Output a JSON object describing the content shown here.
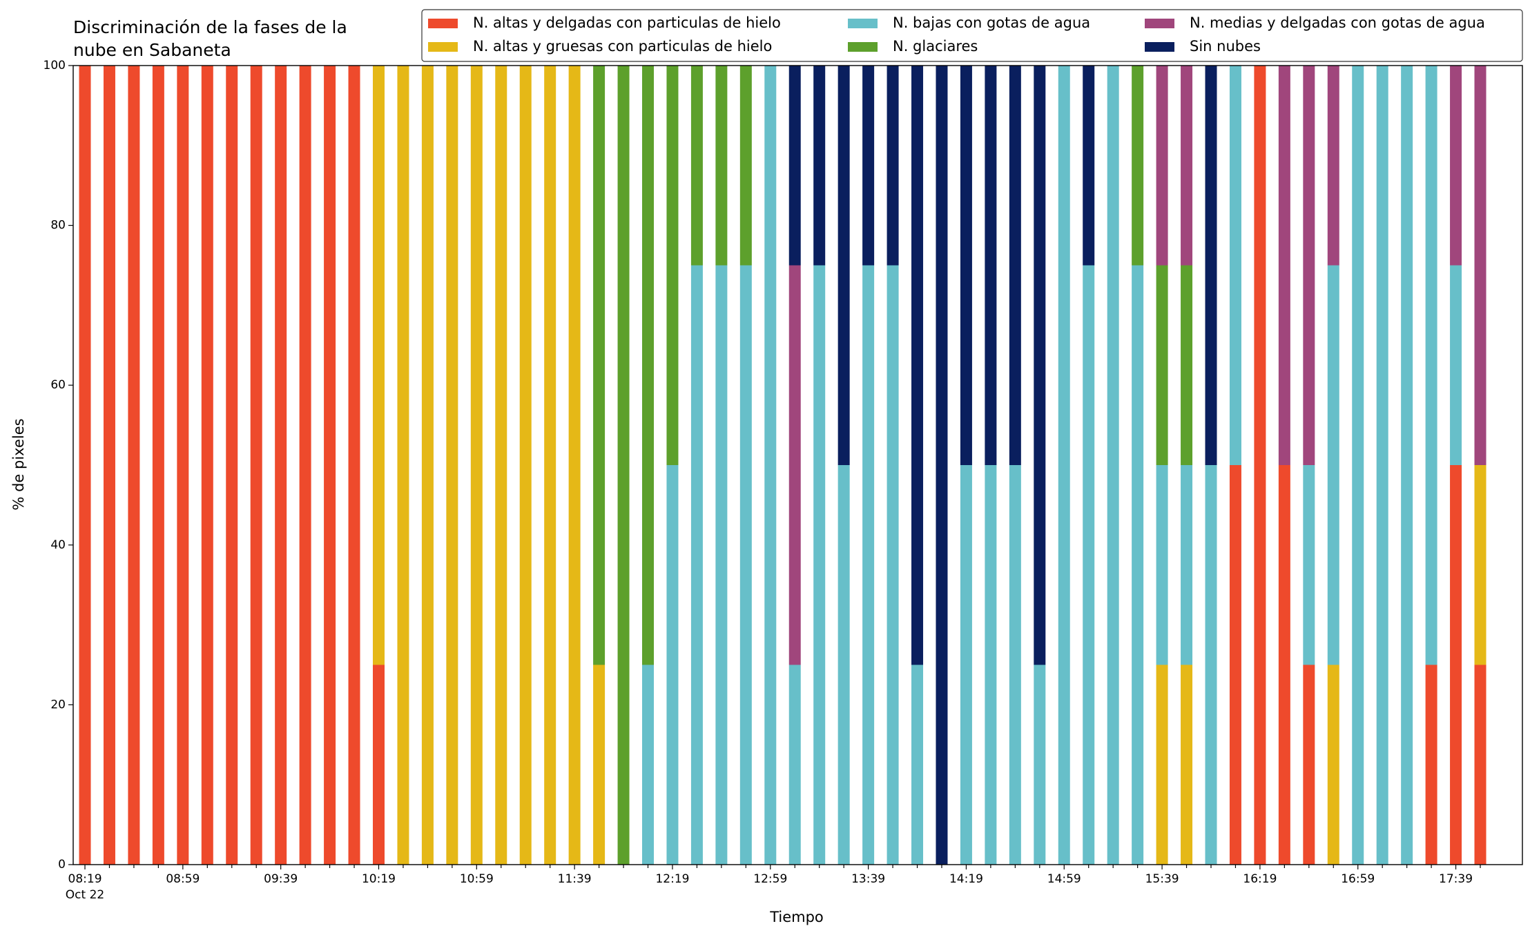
{
  "chart_data": {
    "type": "stacked_bar",
    "title": [
      "Discriminación de la fases de la",
      "nube en Sabaneta"
    ],
    "x_label": "Tiempo",
    "y_label": "% de pixeles",
    "x_date_label": "Oct 22",
    "categories": [
      "08:19",
      null,
      null,
      null,
      "08:59",
      null,
      null,
      null,
      "09:39",
      null,
      null,
      null,
      "10:19",
      null,
      null,
      null,
      "10:59",
      null,
      null,
      null,
      "11:39",
      null,
      null,
      null,
      "12:19",
      null,
      null,
      null,
      "12:59",
      null,
      null,
      null,
      "13:39",
      null,
      null,
      null,
      "14:19",
      null,
      null,
      null,
      "14:59",
      null,
      null,
      null,
      "15:39",
      null,
      null,
      null,
      "16:19",
      null,
      null,
      null,
      "16:59",
      null,
      null,
      null,
      "17:39",
      null
    ],
    "ylim": [
      0,
      100
    ],
    "yticks": [
      0,
      20,
      40,
      60,
      80,
      100
    ],
    "grid": false,
    "legend": "top-right",
    "series": [
      {
        "name": "N. altas y delgadas con particulas de hielo",
        "color": "#ee4a2c",
        "values": [
          100,
          100,
          100,
          100,
          100,
          100,
          100,
          100,
          100,
          100,
          100,
          100,
          25,
          0,
          0,
          0,
          0,
          0,
          0,
          0,
          0,
          0,
          0,
          0,
          0,
          0,
          0,
          0,
          0,
          0,
          0,
          0,
          0,
          0,
          0,
          0,
          0,
          0,
          0,
          0,
          0,
          0,
          0,
          0,
          0,
          0,
          0,
          50,
          100,
          50,
          25,
          0,
          0,
          0,
          0,
          25,
          50,
          25
        ]
      },
      {
        "name": "N. altas y gruesas con particulas de hielo",
        "color": "#e5b817",
        "values": [
          0,
          0,
          0,
          0,
          0,
          0,
          0,
          0,
          0,
          0,
          0,
          0,
          75,
          100,
          100,
          100,
          100,
          100,
          100,
          100,
          100,
          25,
          0,
          0,
          0,
          0,
          0,
          0,
          0,
          0,
          0,
          0,
          0,
          0,
          0,
          0,
          0,
          0,
          0,
          0,
          0,
          0,
          0,
          0,
          25,
          25,
          0,
          0,
          0,
          0,
          0,
          25,
          0,
          0,
          0,
          0,
          0,
          25
        ]
      },
      {
        "name": "N. bajas con gotas de agua",
        "color": "#67bfc9",
        "values": [
          0,
          0,
          0,
          0,
          0,
          0,
          0,
          0,
          0,
          0,
          0,
          0,
          0,
          0,
          0,
          0,
          0,
          0,
          0,
          0,
          0,
          0,
          0,
          25,
          50,
          75,
          75,
          75,
          100,
          25,
          75,
          50,
          75,
          75,
          25,
          0,
          50,
          50,
          50,
          25,
          100,
          75,
          100,
          75,
          25,
          25,
          50,
          50,
          0,
          0,
          25,
          50,
          100,
          100,
          100,
          75,
          25,
          0
        ]
      },
      {
        "name": "N. glaciares",
        "color": "#5da02c",
        "values": [
          0,
          0,
          0,
          0,
          0,
          0,
          0,
          0,
          0,
          0,
          0,
          0,
          0,
          0,
          0,
          0,
          0,
          0,
          0,
          0,
          0,
          75,
          100,
          75,
          50,
          25,
          25,
          25,
          0,
          0,
          0,
          0,
          0,
          0,
          0,
          0,
          0,
          0,
          0,
          0,
          0,
          0,
          0,
          25,
          25,
          25,
          0,
          0,
          0,
          0,
          0,
          0,
          0,
          0,
          0,
          0,
          0,
          0
        ]
      },
      {
        "name": "N. medias y delgadas con gotas de agua",
        "color": "#a0467c",
        "values": [
          0,
          0,
          0,
          0,
          0,
          0,
          0,
          0,
          0,
          0,
          0,
          0,
          0,
          0,
          0,
          0,
          0,
          0,
          0,
          0,
          0,
          0,
          0,
          0,
          0,
          0,
          0,
          0,
          0,
          50,
          0,
          0,
          0,
          0,
          0,
          0,
          0,
          0,
          0,
          0,
          0,
          0,
          0,
          0,
          25,
          25,
          0,
          0,
          0,
          50,
          50,
          25,
          0,
          0,
          0,
          0,
          25,
          50
        ]
      },
      {
        "name": "Sin nubes",
        "color": "#0a1f5e",
        "values": [
          0,
          0,
          0,
          0,
          0,
          0,
          0,
          0,
          0,
          0,
          0,
          0,
          0,
          0,
          0,
          0,
          0,
          0,
          0,
          0,
          0,
          0,
          0,
          0,
          0,
          0,
          0,
          0,
          0,
          25,
          25,
          50,
          25,
          25,
          75,
          100,
          50,
          50,
          50,
          75,
          0,
          25,
          0,
          0,
          0,
          0,
          50,
          0,
          0,
          0,
          0,
          0,
          0,
          0,
          0,
          0,
          0,
          0
        ]
      }
    ]
  }
}
